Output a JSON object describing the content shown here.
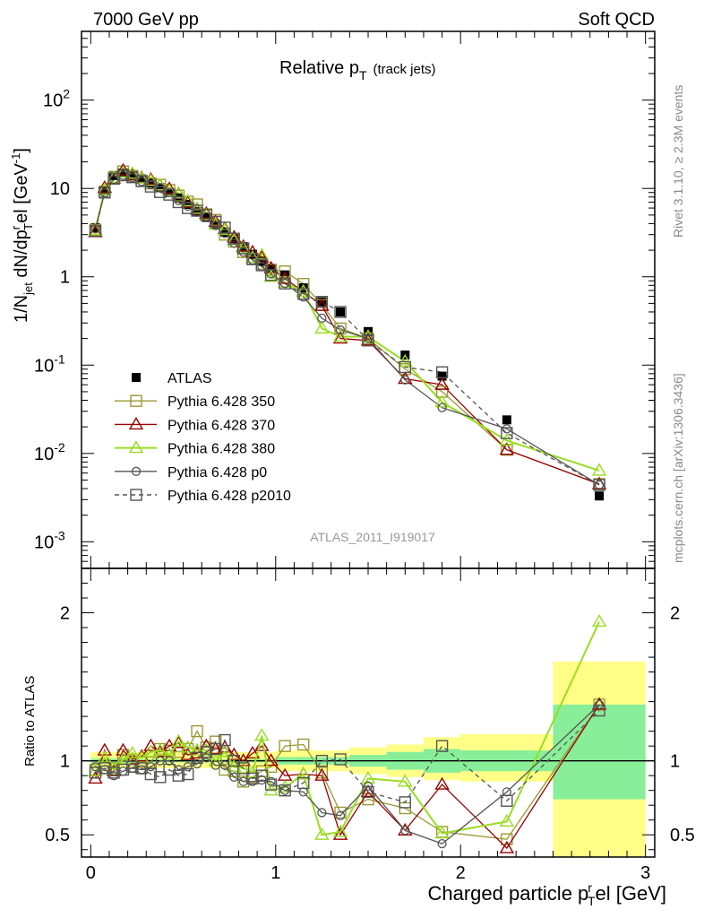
{
  "header": {
    "left": "7000 GeV pp",
    "right": "Soft QCD"
  },
  "side": {
    "rivet": "Rivet 3.1.10, ≥ 2.3M events",
    "mcplots": "mcplots.cern.ch [arXiv:1306.3436]"
  },
  "analysis_id": "ATLAS_2011_I919017",
  "chart_data": [
    {
      "type": "scatter",
      "panel": "main",
      "title": {
        "main": "Relative p",
        "sub": "T",
        "suffix": "(track jets)"
      },
      "ylabel": {
        "a": "1/N",
        "a_sub": "jet",
        "b": " dN/dp",
        "b_sup": "r",
        "b_sub": "T",
        "c": "el [GeV",
        "c_sup": "-1",
        "d": "]"
      },
      "yscale": "log",
      "ylim": [
        0.0005,
        600
      ],
      "xlim": [
        -0.05,
        3.05
      ],
      "y_ticks": [
        {
          "value": 0.001,
          "base": "10",
          "exp": "-3"
        },
        {
          "value": 0.01,
          "base": "10",
          "exp": "-2"
        },
        {
          "value": 0.1,
          "base": "10",
          "exp": "-1"
        },
        {
          "value": 1,
          "base": "1",
          "exp": ""
        },
        {
          "value": 10,
          "base": "10",
          "exp": ""
        },
        {
          "value": 100,
          "base": "10",
          "exp": "2"
        }
      ],
      "legend_position": "bottom-left",
      "series": [
        {
          "name": "ATLAS",
          "color": "#000000",
          "marker": "filled-square",
          "dashed": false,
          "x": [
            0.025,
            0.075,
            0.125,
            0.175,
            0.225,
            0.275,
            0.325,
            0.375,
            0.425,
            0.475,
            0.525,
            0.575,
            0.625,
            0.675,
            0.725,
            0.775,
            0.825,
            0.875,
            0.925,
            0.975,
            1.05,
            1.15,
            1.25,
            1.35,
            1.5,
            1.7,
            1.9,
            2.25,
            2.75
          ],
          "y": [
            3.6,
            9.5,
            14.0,
            15.0,
            14.0,
            12.8,
            11.5,
            10.2,
            9.0,
            7.8,
            6.6,
            5.5,
            4.7,
            3.9,
            3.2,
            2.7,
            2.2,
            1.8,
            1.5,
            1.25,
            1.05,
            0.75,
            0.52,
            0.4,
            0.24,
            0.13,
            0.075,
            0.024,
            0.0033
          ]
        },
        {
          "name": "Pythia 6.428 350",
          "color": "#999933",
          "marker": "open-square",
          "dashed": false,
          "x": [
            0.025,
            0.075,
            0.125,
            0.175,
            0.225,
            0.275,
            0.325,
            0.375,
            0.425,
            0.475,
            0.525,
            0.575,
            0.625,
            0.675,
            0.725,
            0.775,
            0.825,
            0.875,
            0.925,
            0.975,
            1.05,
            1.15,
            1.25,
            1.35,
            1.5,
            1.7,
            1.9,
            2.25,
            2.75
          ],
          "y": [
            3.4,
            9.2,
            13.3,
            15.6,
            13.9,
            12.2,
            11.4,
            11.0,
            9.6,
            8.3,
            7.1,
            6.6,
            5.1,
            4.4,
            3.0,
            2.5,
            1.9,
            1.6,
            1.4,
            1.2,
            1.15,
            0.83,
            0.48,
            0.26,
            0.2,
            0.09,
            0.05,
            0.011,
            0.0045
          ]
        },
        {
          "name": "Pythia 6.428 370",
          "color": "#990000",
          "marker": "open-triangle",
          "dashed": false,
          "x": [
            0.025,
            0.075,
            0.125,
            0.175,
            0.225,
            0.275,
            0.325,
            0.375,
            0.425,
            0.475,
            0.525,
            0.575,
            0.625,
            0.675,
            0.725,
            0.775,
            0.825,
            0.875,
            0.925,
            0.975,
            1.05,
            1.15,
            1.25,
            1.35,
            1.5,
            1.7,
            1.9,
            2.25,
            2.75
          ],
          "y": [
            3.2,
            10.2,
            13.0,
            16.0,
            14.2,
            13.2,
            12.6,
            10.8,
            9.9,
            8.7,
            6.9,
            5.8,
            5.2,
            4.2,
            3.5,
            2.8,
            2.2,
            1.9,
            1.65,
            1.25,
            0.95,
            0.68,
            0.47,
            0.2,
            0.19,
            0.07,
            0.06,
            0.011,
            0.0045
          ]
        },
        {
          "name": "Pythia 6.428 380",
          "color": "#99dd22",
          "marker": "open-triangle",
          "dashed": false,
          "x": [
            0.025,
            0.075,
            0.125,
            0.175,
            0.225,
            0.275,
            0.325,
            0.375,
            0.425,
            0.475,
            0.525,
            0.575,
            0.625,
            0.675,
            0.725,
            0.775,
            0.825,
            0.875,
            0.925,
            0.975,
            1.05,
            1.15,
            1.25,
            1.35,
            1.5,
            1.7,
            1.9,
            2.25,
            2.75
          ],
          "y": [
            3.4,
            9.7,
            13.2,
            15.1,
            14.7,
            13.0,
            12.2,
            10.9,
            9.4,
            8.8,
            7.2,
            5.9,
            5.0,
            3.9,
            3.4,
            2.6,
            2.1,
            1.65,
            1.75,
            1.0,
            0.86,
            0.68,
            0.26,
            0.21,
            0.21,
            0.11,
            0.038,
            0.014,
            0.0064
          ]
        },
        {
          "name": "Pythia 6.428 p0",
          "color": "#555555",
          "marker": "open-circle",
          "dashed": false,
          "x": [
            0.025,
            0.075,
            0.125,
            0.175,
            0.225,
            0.275,
            0.325,
            0.375,
            0.425,
            0.475,
            0.525,
            0.575,
            0.625,
            0.675,
            0.725,
            0.775,
            0.825,
            0.875,
            0.925,
            0.975,
            1.05,
            1.15,
            1.25,
            1.35,
            1.5,
            1.7,
            1.9,
            2.25,
            2.75
          ],
          "y": [
            3.5,
            8.9,
            12.6,
            14.0,
            13.3,
            12.0,
            11.0,
            10.2,
            9.0,
            7.3,
            6.3,
            5.4,
            4.8,
            3.8,
            3.1,
            2.4,
            1.9,
            1.55,
            1.3,
            1.08,
            0.84,
            0.59,
            0.34,
            0.25,
            0.2,
            0.068,
            0.033,
            0.019,
            0.0044
          ]
        },
        {
          "name": "Pythia 6.428 p2010",
          "color": "#555555",
          "marker": "open-square",
          "dashed": true,
          "x": [
            0.025,
            0.075,
            0.125,
            0.175,
            0.225,
            0.275,
            0.325,
            0.375,
            0.425,
            0.475,
            0.525,
            0.575,
            0.625,
            0.675,
            0.725,
            0.775,
            0.825,
            0.875,
            0.925,
            0.975,
            1.05,
            1.15,
            1.25,
            1.35,
            1.5,
            1.7,
            1.9,
            2.25,
            2.75
          ],
          "y": [
            3.3,
            9.0,
            12.9,
            14.1,
            13.4,
            12.1,
            10.5,
            9.1,
            8.5,
            7.0,
            6.0,
            5.6,
            5.0,
            4.2,
            3.6,
            2.7,
            2.1,
            1.58,
            1.35,
            1.05,
            0.84,
            0.64,
            0.52,
            0.4,
            0.19,
            0.095,
            0.083,
            0.017,
            0.0044
          ]
        }
      ]
    },
    {
      "type": "line",
      "panel": "ratio",
      "ylabel": "Ratio to ATLAS",
      "xlabel": {
        "a": "Charged particle p",
        "sup": "r",
        "sub": "T",
        "b": "el [GeV]"
      },
      "ylim": [
        0.35,
        2.3
      ],
      "xlim": [
        -0.05,
        3.05
      ],
      "x_ticks": [
        0,
        1,
        2,
        3
      ],
      "y_ticks": [
        0.5,
        1,
        2
      ],
      "reference_line": 1,
      "uncertainty_bands": [
        {
          "x0": 0.0,
          "x1": 0.25,
          "stat": [
            0.985,
            1.015
          ],
          "total": [
            0.95,
            1.06
          ]
        },
        {
          "x0": 0.25,
          "x1": 1.0,
          "stat": [
            0.99,
            1.01
          ],
          "total": [
            0.95,
            1.06
          ]
        },
        {
          "x0": 1.0,
          "x1": 1.4,
          "stat": [
            0.975,
            1.025
          ],
          "total": [
            0.93,
            1.07
          ]
        },
        {
          "x0": 1.4,
          "x1": 1.6,
          "stat": [
            0.96,
            1.04
          ],
          "total": [
            0.91,
            1.09
          ]
        },
        {
          "x0": 1.6,
          "x1": 1.8,
          "stat": [
            0.94,
            1.06
          ],
          "total": [
            0.89,
            1.11
          ]
        },
        {
          "x0": 1.8,
          "x1": 2.0,
          "stat": [
            0.92,
            1.08
          ],
          "total": [
            0.87,
            1.16
          ]
        },
        {
          "x0": 2.0,
          "x1": 2.5,
          "stat": [
            0.93,
            1.07
          ],
          "total": [
            0.86,
            1.18
          ]
        },
        {
          "x0": 2.5,
          "x1": 3.0,
          "stat": [
            0.74,
            1.38
          ],
          "total": [
            0.35,
            1.67
          ]
        }
      ],
      "series": [
        {
          "name": "Pythia 6.428 350",
          "ratio": [
            0.94,
            0.97,
            0.95,
            1.04,
            0.99,
            0.95,
            0.99,
            1.08,
            1.07,
            1.06,
            1.08,
            1.2,
            1.09,
            1.13,
            0.94,
            0.93,
            0.86,
            0.89,
            0.93,
            0.96,
            1.1,
            1.11,
            0.92,
            0.65,
            0.74,
            0.68,
            0.52,
            0.47,
            1.38
          ]
        },
        {
          "name": "Pythia 6.428 370",
          "ratio": [
            0.88,
            1.07,
            0.93,
            1.07,
            1.01,
            1.03,
            1.1,
            1.06,
            1.1,
            1.12,
            1.04,
            1.05,
            1.1,
            1.08,
            1.09,
            1.04,
            1.0,
            1.05,
            1.1,
            1.0,
            0.9,
            0.91,
            0.9,
            0.5,
            0.79,
            0.53,
            0.84,
            0.41,
            1.38
          ]
        },
        {
          "name": "Pythia 6.428 380",
          "ratio": [
            0.93,
            1.02,
            0.94,
            1.01,
            1.05,
            1.02,
            1.06,
            1.07,
            1.04,
            1.13,
            1.09,
            1.07,
            1.07,
            1.0,
            1.06,
            0.96,
            0.95,
            0.92,
            1.17,
            0.8,
            0.82,
            0.91,
            0.5,
            0.52,
            0.88,
            0.86,
            0.51,
            0.59,
            1.94
          ]
        },
        {
          "name": "Pythia 6.428 p0",
          "ratio": [
            0.96,
            0.94,
            0.9,
            0.93,
            0.95,
            0.94,
            0.96,
            1.0,
            1.0,
            0.94,
            0.96,
            0.98,
            1.02,
            0.97,
            0.97,
            0.89,
            0.86,
            0.86,
            0.87,
            0.86,
            0.8,
            0.79,
            0.65,
            0.63,
            0.83,
            0.53,
            0.44,
            0.79,
            1.38
          ]
        },
        {
          "name": "Pythia 6.428 p2010",
          "ratio": [
            0.92,
            0.95,
            0.92,
            0.94,
            0.96,
            0.95,
            0.91,
            0.89,
            0.94,
            0.9,
            0.91,
            1.02,
            1.06,
            1.08,
            1.14,
            1.0,
            0.95,
            0.88,
            0.9,
            0.84,
            0.8,
            0.85,
            1.0,
            1.01,
            0.79,
            0.72,
            1.1,
            0.73,
            1.34
          ]
        }
      ]
    }
  ]
}
